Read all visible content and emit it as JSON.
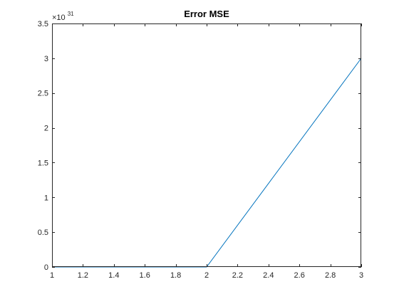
{
  "chart_data": {
    "type": "line",
    "title": "Error MSE",
    "xlabel": "",
    "ylabel": "",
    "xlim": [
      1,
      3
    ],
    "ylim": [
      0,
      3.5
    ],
    "x_ticks": [
      1,
      1.2,
      1.4,
      1.6,
      1.8,
      2,
      2.2,
      2.4,
      2.6,
      2.8,
      3
    ],
    "x_tick_labels": [
      "1",
      "1.2",
      "1.4",
      "1.6",
      "1.8",
      "2",
      "2.2",
      "2.4",
      "2.6",
      "2.8",
      "3"
    ],
    "y_ticks": [
      0,
      0.5,
      1,
      1.5,
      2,
      2.5,
      3,
      3.5
    ],
    "y_tick_labels": [
      "0",
      "0.5",
      "1",
      "1.5",
      "2",
      "2.5",
      "3",
      "3.5"
    ],
    "y_exponent_base": "×10",
    "y_exponent_power": "31",
    "grid": false,
    "series": [
      {
        "x": [
          1,
          2,
          3
        ],
        "y": [
          0,
          0,
          3
        ],
        "color": "#0072BD"
      }
    ]
  }
}
